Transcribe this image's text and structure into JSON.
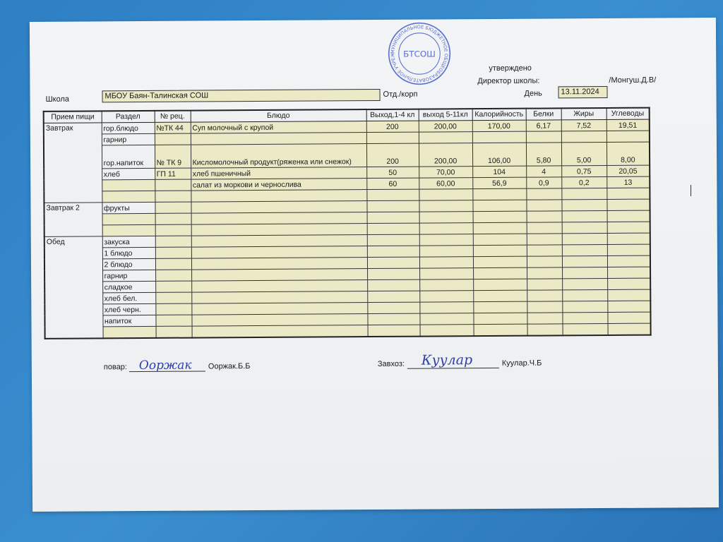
{
  "header": {
    "approved_label": "утверждено",
    "director_label": "Директор школы:",
    "director_name": "/Монгуш.Д.В/",
    "school_label": "Школа",
    "school_value": "МБОУ Баян-Талинская СОШ",
    "dept_label": "Отд./корп",
    "day_label": "День",
    "day_value": "13.11.2024"
  },
  "stamp": {
    "text": "МУНИЦИПАЛЬНОЕ БЮДЖЕТНОЕ ОБЩЕОБРАЗОВАТЕЛЬНОЕ УЧРЕЖДЕНИЕ СРЕДНЯЯ ОБЩЕОБРАЗОВАТЕЛЬНАЯ ШКОЛА ДЗУН-ХЕМЧИКСКОГО КОЖУУНА ОГРН 1021700625716",
    "center": "БТСОШ",
    "color": "#3550c8"
  },
  "table": {
    "columns": [
      "Прием пищи",
      "Раздел",
      "№ рец.",
      "Блюдо",
      "Выход,1-4 кл",
      "выход 5-11кл",
      "Калорийность",
      "Белки",
      "Жиры",
      "Углеводы"
    ],
    "rows": [
      {
        "meal": "Завтрак",
        "section": "гор.блюдо",
        "recipe": "№ТК 44",
        "dish": "Суп молочный с крупой",
        "out1": "200",
        "out2": "200,00",
        "kcal": "170,00",
        "prot": "6,17",
        "fat": "7,52",
        "carb": "19,51"
      },
      {
        "meal": "",
        "section": "гарнир",
        "recipe": "",
        "dish": "",
        "out1": "",
        "out2": "",
        "kcal": "",
        "prot": "",
        "fat": "",
        "carb": ""
      },
      {
        "meal": "",
        "section": "гор.напиток",
        "recipe": "№ ТК 9",
        "dish": "Кисломолочный продукт(ряженка или снежок)",
        "out1": "200",
        "out2": "200,00",
        "kcal": "106,00",
        "prot": "5,80",
        "fat": "5,00",
        "carb": "8,00"
      },
      {
        "meal": "",
        "section": "хлеб",
        "recipe": "ГП 11",
        "dish": "хлеб пшеничный",
        "out1": "50",
        "out2": "70,00",
        "kcal": "104",
        "prot": "4",
        "fat": "0,75",
        "carb": "20,05"
      },
      {
        "meal": "",
        "section": "",
        "recipe": "",
        "dish": "салат из моркови и чернослива",
        "out1": "60",
        "out2": "60,00",
        "kcal": "56,9",
        "prot": "0,9",
        "fat": "0,2",
        "carb": "13"
      },
      {
        "meal": "",
        "section": "",
        "recipe": "",
        "dish": "",
        "out1": "",
        "out2": "",
        "kcal": "",
        "prot": "",
        "fat": "",
        "carb": ""
      },
      {
        "meal": "Завтрак 2",
        "section": "фрукты",
        "recipe": "",
        "dish": "",
        "out1": "",
        "out2": "",
        "kcal": "",
        "prot": "",
        "fat": "",
        "carb": ""
      },
      {
        "meal": "",
        "section": "",
        "recipe": "",
        "dish": "",
        "out1": "",
        "out2": "",
        "kcal": "",
        "prot": "",
        "fat": "",
        "carb": ""
      },
      {
        "meal": "",
        "section": "",
        "recipe": "",
        "dish": "",
        "out1": "",
        "out2": "",
        "kcal": "",
        "prot": "",
        "fat": "",
        "carb": ""
      },
      {
        "meal": "Обед",
        "section": "закуска",
        "recipe": "",
        "dish": "",
        "out1": "",
        "out2": "",
        "kcal": "",
        "prot": "",
        "fat": "",
        "carb": ""
      },
      {
        "meal": "",
        "section": "1 блюдо",
        "recipe": "",
        "dish": "",
        "out1": "",
        "out2": "",
        "kcal": "",
        "prot": "",
        "fat": "",
        "carb": ""
      },
      {
        "meal": "",
        "section": "2 блюдо",
        "recipe": "",
        "dish": "",
        "out1": "",
        "out2": "",
        "kcal": "",
        "prot": "",
        "fat": "",
        "carb": ""
      },
      {
        "meal": "",
        "section": "гарнир",
        "recipe": "",
        "dish": "",
        "out1": "",
        "out2": "",
        "kcal": "",
        "prot": "",
        "fat": "",
        "carb": ""
      },
      {
        "meal": "",
        "section": "сладкое",
        "recipe": "",
        "dish": "",
        "out1": "",
        "out2": "",
        "kcal": "",
        "prot": "",
        "fat": "",
        "carb": ""
      },
      {
        "meal": "",
        "section": "хлеб бел.",
        "recipe": "",
        "dish": "",
        "out1": "",
        "out2": "",
        "kcal": "",
        "prot": "",
        "fat": "",
        "carb": ""
      },
      {
        "meal": "",
        "section": "хлеб черн.",
        "recipe": "",
        "dish": "",
        "out1": "",
        "out2": "",
        "kcal": "",
        "prot": "",
        "fat": "",
        "carb": ""
      },
      {
        "meal": "",
        "section": "напиток",
        "recipe": "",
        "dish": "",
        "out1": "",
        "out2": "",
        "kcal": "",
        "prot": "",
        "fat": "",
        "carb": ""
      },
      {
        "meal": "",
        "section": "",
        "recipe": "",
        "dish": "",
        "out1": "",
        "out2": "",
        "kcal": "",
        "prot": "",
        "fat": "",
        "carb": ""
      }
    ]
  },
  "footer": {
    "cook_label": "повар:",
    "cook_signature": "Ооржак",
    "cook_name": "Ооржак.Б.Б",
    "storekeeper_label": "Завхоз:",
    "storekeeper_signature": "Куулар",
    "storekeeper_name": "Куулар.Ч.Б"
  }
}
